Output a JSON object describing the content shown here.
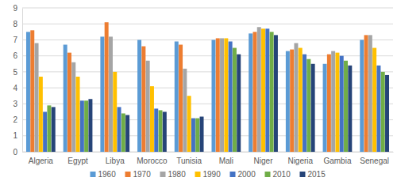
{
  "chart_data": {
    "type": "bar",
    "categories": [
      "Algeria",
      "Egypt",
      "Libya",
      "Morocco",
      "Tunisia",
      "Mali",
      "Niger",
      "Nigeria",
      "Gambia",
      "Senegal"
    ],
    "series": [
      {
        "name": "1960",
        "color": "#5b9bd5",
        "values": [
          7.5,
          6.7,
          7.2,
          7.0,
          6.9,
          7.0,
          7.4,
          6.3,
          5.5,
          7.0
        ]
      },
      {
        "name": "1970",
        "color": "#ed7d31",
        "values": [
          7.6,
          6.2,
          8.1,
          6.6,
          6.7,
          7.1,
          7.5,
          6.4,
          6.1,
          7.3
        ]
      },
      {
        "name": "1980",
        "color": "#a5a5a5",
        "values": [
          6.8,
          5.6,
          7.2,
          5.7,
          5.2,
          7.1,
          7.8,
          6.8,
          6.3,
          7.3
        ]
      },
      {
        "name": "1990",
        "color": "#ffc000",
        "values": [
          4.7,
          4.7,
          5.0,
          4.1,
          3.5,
          7.1,
          7.7,
          6.5,
          6.2,
          6.5
        ]
      },
      {
        "name": "2000",
        "color": "#4472c4",
        "values": [
          2.5,
          3.2,
          2.8,
          2.7,
          2.1,
          6.9,
          7.7,
          6.1,
          6.0,
          5.4
        ]
      },
      {
        "name": "2010",
        "color": "#70ad47",
        "values": [
          2.9,
          3.2,
          2.4,
          2.6,
          2.1,
          6.5,
          7.5,
          5.8,
          5.7,
          5.0
        ]
      },
      {
        "name": "2015",
        "color": "#264478",
        "values": [
          2.8,
          3.3,
          2.3,
          2.5,
          2.2,
          6.1,
          7.3,
          5.5,
          5.4,
          4.8
        ]
      }
    ],
    "ylim": [
      0,
      9
    ],
    "yticks": [
      0,
      1,
      2,
      3,
      4,
      5,
      6,
      7,
      8,
      9
    ],
    "grid": true,
    "legend": "bottom"
  }
}
